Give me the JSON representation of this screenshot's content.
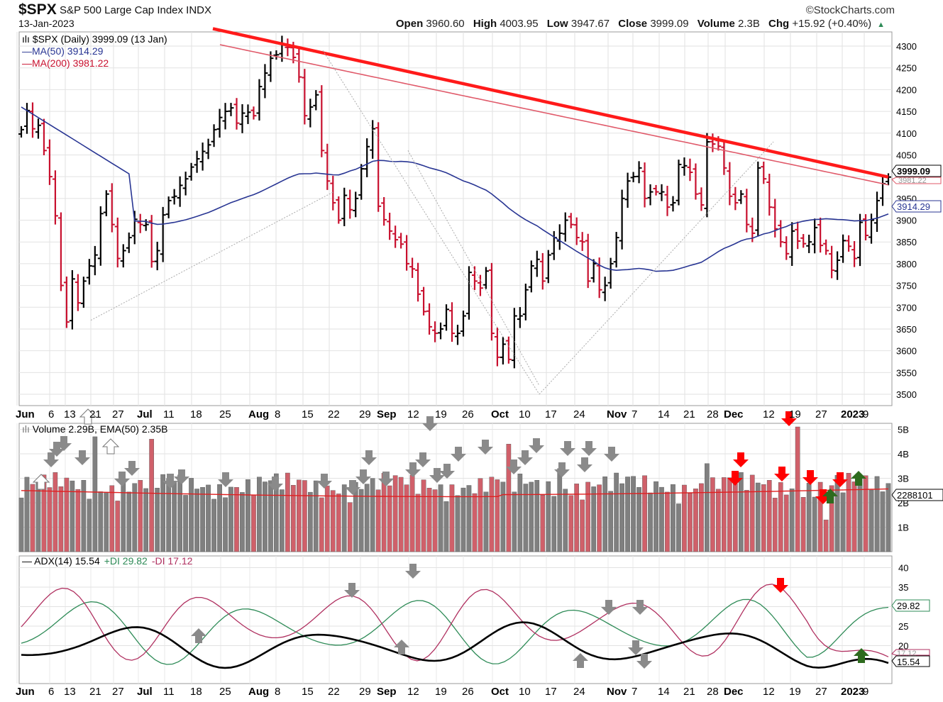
{
  "header": {
    "symbol": "$SPX",
    "name": "S&P 500 Large Cap Index INDX",
    "date": "13-Jan-2023",
    "brand": "©StockCharts.com",
    "open_label": "Open",
    "open": "3960.60",
    "high_label": "High",
    "high": "4003.95",
    "low_label": "Low",
    "low": "3947.67",
    "close_label": "Close",
    "close": "3999.09",
    "volume_label": "Volume",
    "volume": "2.3B",
    "chg_label": "Chg",
    "chg": "+15.92 (+0.40%)"
  },
  "legend": {
    "price": "$SPX (Daily) 3999.09 (13 Jan)",
    "ma50": "MA(50) 3914.29",
    "ma200": "MA(200) 3981.22",
    "volume": "Volume 2.29B, EMA(50) 2.35B",
    "adx": "ADX(14) 15.54",
    "pdi": "+DI 29.82",
    "mdi": "-DI 17.12"
  },
  "tags": {
    "close": "3999.09",
    "ma200": "3981.22",
    "ma50": "3914.29",
    "volume": "2288101",
    "pdi": "29.82",
    "mdi": "17.12",
    "adx": "15.54"
  },
  "colors": {
    "up": "#000000",
    "down": "#c8102e",
    "ma50": "#283593",
    "ma200": "#e05a6a",
    "trend": "#ff1a1a",
    "vol_up": "#808080",
    "vol_down": "#d0606a",
    "adx": "#000000",
    "pdi": "#2e8b57",
    "mdi": "#b03060",
    "arrow_gray": "#8a8a8a",
    "arrow_red": "#ff0000",
    "arrow_green": "#2e6b1e"
  },
  "chart_data": [
    {
      "type": "ohlc",
      "title": "$SPX S&P 500 Large Cap Index INDX",
      "x_ticks": [
        "Jun",
        "6",
        "13",
        "21",
        "27",
        "Jul",
        "11",
        "18",
        "25",
        "Aug",
        "8",
        "15",
        "22",
        "29",
        "Sep",
        "12",
        "19",
        "26",
        "Oct",
        "10",
        "17",
        "24",
        "Nov",
        "7",
        "14",
        "21",
        "28",
        "Dec",
        "12",
        "19",
        "27",
        "2023",
        "9"
      ],
      "y_ticks": [
        3500,
        3550,
        3600,
        3650,
        3700,
        3750,
        3800,
        3850,
        3900,
        3950,
        4000,
        4050,
        4100,
        4150,
        4200,
        4250,
        4300
      ],
      "ylim": [
        3480,
        4330
      ],
      "grid": true,
      "closes": [
        4108,
        4152,
        4110,
        4118,
        4060,
        4000,
        3910,
        3750,
        3666,
        3765,
        3710,
        3760,
        3795,
        3820,
        3915,
        3960,
        3890,
        3812,
        3830,
        3860,
        3902,
        3890,
        3890,
        3805,
        3830,
        3912,
        3945,
        3955,
        3980,
        3995,
        4022,
        4041,
        4058,
        4073,
        4108,
        4136,
        4150,
        4158,
        4123,
        4146,
        4148,
        4140,
        4207,
        4238,
        4272,
        4280,
        4305,
        4297,
        4274,
        4229,
        4140,
        4160,
        4188,
        4060,
        3990,
        3940,
        3900,
        3957,
        3924,
        3950,
        4018,
        4069,
        4110,
        3932,
        3901,
        3875,
        3855,
        3845,
        3800,
        3788,
        3730,
        3690,
        3655,
        3640,
        3650,
        3695,
        3640,
        3640,
        3680,
        3780,
        3760,
        3744,
        3783,
        3640,
        3585,
        3615,
        3580,
        3680,
        3680,
        3740,
        3795,
        3810,
        3760,
        3820,
        3860,
        3870,
        3900,
        3890,
        3860,
        3850,
        3760,
        3800,
        3740,
        3750,
        3800,
        3860,
        3950,
        3990,
        4000,
        4020,
        3950,
        3965,
        3965,
        3965,
        3930,
        3940,
        4028,
        4025,
        4010,
        3960,
        3935,
        4080,
        4075,
        4070,
        4020,
        3955,
        3940,
        3960,
        3890,
        3870,
        4020,
        3995,
        3930,
        3880,
        3850,
        3823,
        3875,
        3852,
        3846,
        3850,
        3883,
        3842,
        3830,
        3785,
        3808,
        3853,
        3840,
        3812,
        3895,
        3865,
        3900,
        3945,
        3984,
        3999.09
      ],
      "ma50": {
        "name": "MA(50)",
        "last": 3914.29
      },
      "ma200": {
        "name": "MA(200)",
        "last": 3981.22
      },
      "trendline": {
        "from": [
          "Jun",
          4340
        ],
        "to": [
          "13 Jan",
          3999
        ]
      }
    },
    {
      "type": "bar",
      "title": "Volume 2.29B, EMA(50) 2.35B",
      "y_ticks": [
        "1B",
        "2B",
        "3B",
        "4B",
        "5B"
      ],
      "ylim": [
        0,
        5.3
      ],
      "ema50_last": 2.35,
      "last": 2.29
    },
    {
      "type": "line",
      "title": "ADX(14) 15.54 +DI 29.82 -DI 17.12",
      "y_ticks": [
        20,
        25,
        30,
        35,
        40
      ],
      "ylim": [
        10,
        42
      ],
      "series": [
        {
          "name": "ADX(14)",
          "last": 15.54
        },
        {
          "name": "+DI",
          "last": 29.82
        },
        {
          "name": "-DI",
          "last": 17.12
        }
      ]
    }
  ]
}
